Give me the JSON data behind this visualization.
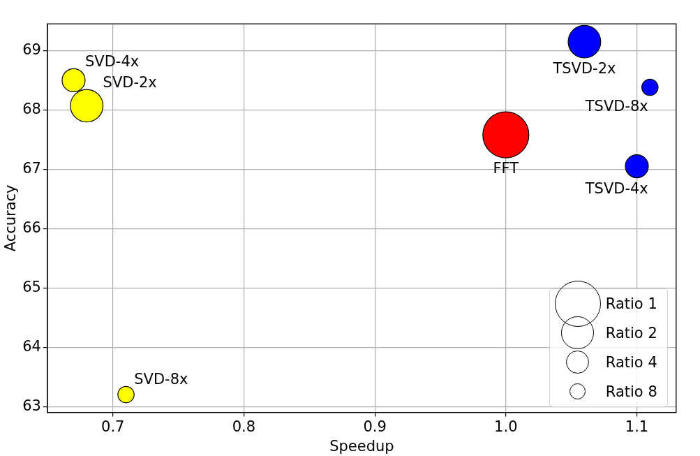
{
  "chart_data": {
    "type": "bubble",
    "xlabel": "Speedup",
    "ylabel": "Accuracy",
    "xlim": [
      0.65,
      1.13
    ],
    "xticks": [
      0.7,
      0.8,
      0.9,
      {
        "value": 1.0,
        "label": "1.0"
      },
      1.1
    ],
    "ylim": [
      62.9,
      69.45
    ],
    "yticks": [
      63,
      64,
      65,
      66,
      67,
      68,
      69
    ],
    "grid": true,
    "size_legend": [
      {
        "value": 1,
        "label": "Ratio 1"
      },
      {
        "value": 0.5,
        "label": "Ratio 2"
      },
      {
        "value": 0.25,
        "label": "Ratio 4"
      },
      {
        "value": 0.125,
        "label": "Ratio 8"
      }
    ],
    "series": [
      {
        "color": "#ffff00",
        "x": [
          0.67,
          0.68,
          0.71
        ],
        "values": [
          68.5,
          68.07,
          63.2
        ],
        "sizes": [
          0.25,
          0.5,
          0.125
        ]
      },
      {
        "color": "#ff0000",
        "x": [
          1.0
        ],
        "values": [
          67.58
        ],
        "sizes": [
          1
        ]
      },
      {
        "color": "#0000ff",
        "x": [
          1.06,
          1.11,
          1.1
        ],
        "values": [
          69.15,
          68.38,
          67.05
        ],
        "sizes": [
          0.5,
          0.125,
          0.25
        ]
      }
    ],
    "annotations": [
      {
        "text": "SVD-4x",
        "x": 0.67,
        "y": 68.5
      },
      {
        "text": "SVD-2x",
        "x": 0.68,
        "y": 68.07
      },
      {
        "text": "SVD-8x",
        "x": 0.71,
        "y": 63.2
      },
      {
        "text": "FFT",
        "x": 1.0,
        "y": 67.58
      },
      {
        "text": "TSVD-2x",
        "x": 1.06,
        "y": 69.15
      },
      {
        "text": "TSVD-8x",
        "x": 1.11,
        "y": 68.38
      },
      {
        "text": "TSVD-4x",
        "x": 1.1,
        "y": 67.05
      }
    ]
  }
}
